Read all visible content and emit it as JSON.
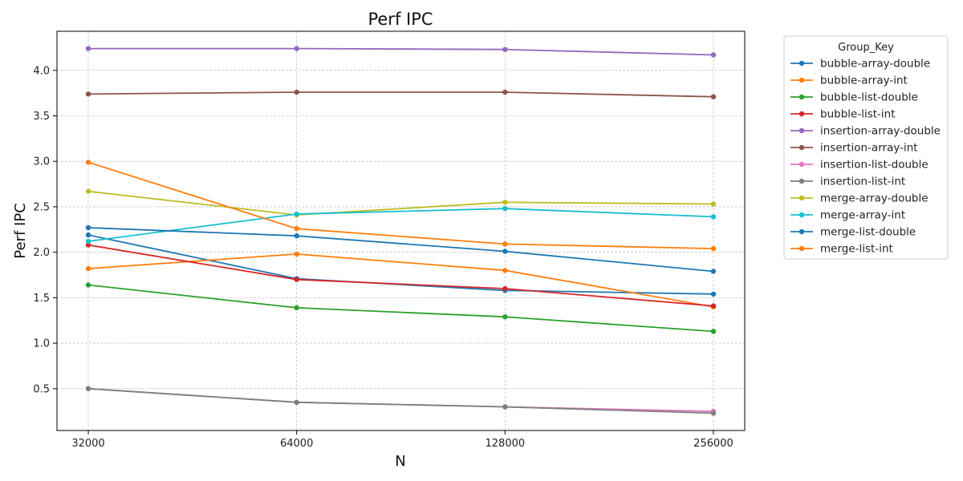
{
  "chart_data": {
    "type": "line",
    "title": "Perf IPC",
    "xlabel": "N",
    "ylabel": "Perf IPC",
    "x": [
      32000,
      64000,
      128000,
      256000
    ],
    "x_scale": "log2",
    "x_tick_labels": [
      "32000",
      "64000",
      "128000",
      "256000"
    ],
    "y_ticks": [
      0.5,
      1.0,
      1.5,
      2.0,
      2.5,
      3.0,
      3.5,
      4.0
    ],
    "y_tick_labels": [
      "0.5",
      "1.0",
      "1.5",
      "2.0",
      "2.5",
      "3.0",
      "3.5",
      "4.0"
    ],
    "ylim": [
      0.04,
      4.43
    ],
    "grid": true,
    "legend_title": "Group_Key",
    "legend_position": "outside-right",
    "series": [
      {
        "name": "bubble-array-double",
        "color": "#1f77b4",
        "values": [
          2.19,
          1.71,
          1.58,
          1.54
        ]
      },
      {
        "name": "bubble-array-int",
        "color": "#ff7f0e",
        "values": [
          1.82,
          1.98,
          1.8,
          1.4
        ]
      },
      {
        "name": "bubble-list-double",
        "color": "#2ca02c",
        "values": [
          1.64,
          1.39,
          1.29,
          1.13
        ]
      },
      {
        "name": "bubble-list-int",
        "color": "#d62728",
        "values": [
          2.08,
          1.7,
          1.6,
          1.41
        ]
      },
      {
        "name": "insertion-array-double",
        "color": "#9467bd",
        "values": [
          4.24,
          4.24,
          4.23,
          4.17
        ]
      },
      {
        "name": "insertion-array-int",
        "color": "#8c564b",
        "values": [
          3.74,
          3.76,
          3.76,
          3.71
        ]
      },
      {
        "name": "insertion-list-double",
        "color": "#e377c2",
        "values": [
          0.5,
          0.35,
          0.3,
          0.25
        ]
      },
      {
        "name": "insertion-list-int",
        "color": "#7f7f7f",
        "values": [
          0.5,
          0.35,
          0.3,
          0.23
        ]
      },
      {
        "name": "merge-array-double",
        "color": "#bcbd22",
        "values": [
          2.67,
          2.41,
          2.55,
          2.53
        ]
      },
      {
        "name": "merge-array-int",
        "color": "#17becf",
        "values": [
          2.12,
          2.42,
          2.48,
          2.39
        ]
      },
      {
        "name": "merge-list-double",
        "color": "#1f77b4",
        "values": [
          2.27,
          2.18,
          2.01,
          1.79
        ]
      },
      {
        "name": "merge-list-int",
        "color": "#ff7f0e",
        "values": [
          2.99,
          2.26,
          2.09,
          2.04
        ]
      }
    ]
  }
}
